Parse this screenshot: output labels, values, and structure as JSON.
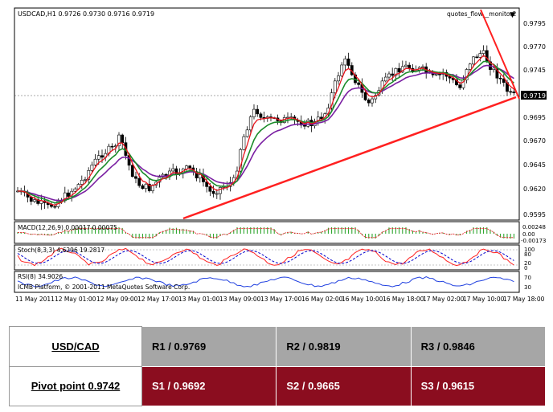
{
  "chart": {
    "symbol_header": "USDCAD,H1  0.9726 0.9730 0.9716 0.9719",
    "indicator_label": "quotes_flow__monitor2",
    "current_price": "0.9719",
    "price_ticks": [
      "0.9795",
      "0.9770",
      "0.9745",
      "0.9719",
      "0.9695",
      "0.9670",
      "0.9645",
      "0.9620",
      "0.9595"
    ],
    "macd_label": "MACD(12,26,9) 0.00017 0.00075",
    "macd_ticks": [
      "0.00248",
      "0.00",
      "-0.00173"
    ],
    "stoch_label": "Stoch(8,3,3) 4.6296 19.2817",
    "stoch_ticks": [
      "100",
      "80",
      "20",
      "0"
    ],
    "rsi_label": "RSI(8) 34.9026",
    "rsi_ticks": [
      "70",
      "30"
    ],
    "copyright": "ICMB Platform, © 2001-2011 MetaQuotes Software Corp.",
    "time_labels": [
      "11 May 2011",
      "12 May 01:00",
      "12 May 09:00",
      "12 May 17:00",
      "13 May 01:00",
      "13 May 09:00",
      "13 May 17:00",
      "16 May 02:00",
      "16 May 10:00",
      "16 May 18:00",
      "17 May 02:00",
      "17 May 10:00",
      "17 May 18:00"
    ],
    "colors": {
      "bull": "#ffffff",
      "bear": "#000000",
      "ma_fast": "#e8141c",
      "ma_mid": "#1a8c2a",
      "ma_slow": "#7a1fa2",
      "trend": "#ff2020",
      "macd": "#1c9e1c",
      "stoch_main": "#ff2020",
      "stoch_signal": "#0000cc",
      "rsi": "#2040e0"
    }
  },
  "pivot": {
    "pair": "USD/CAD",
    "pivot_point": "Pivot point 0.9742",
    "resistances": [
      "R1 / 0.9769",
      "R2 / 0.9819",
      "R3 / 0.9846"
    ],
    "supports": [
      "S1 / 0.9692",
      "S2 / 0.9665",
      "S3 / 0.9615"
    ]
  }
}
